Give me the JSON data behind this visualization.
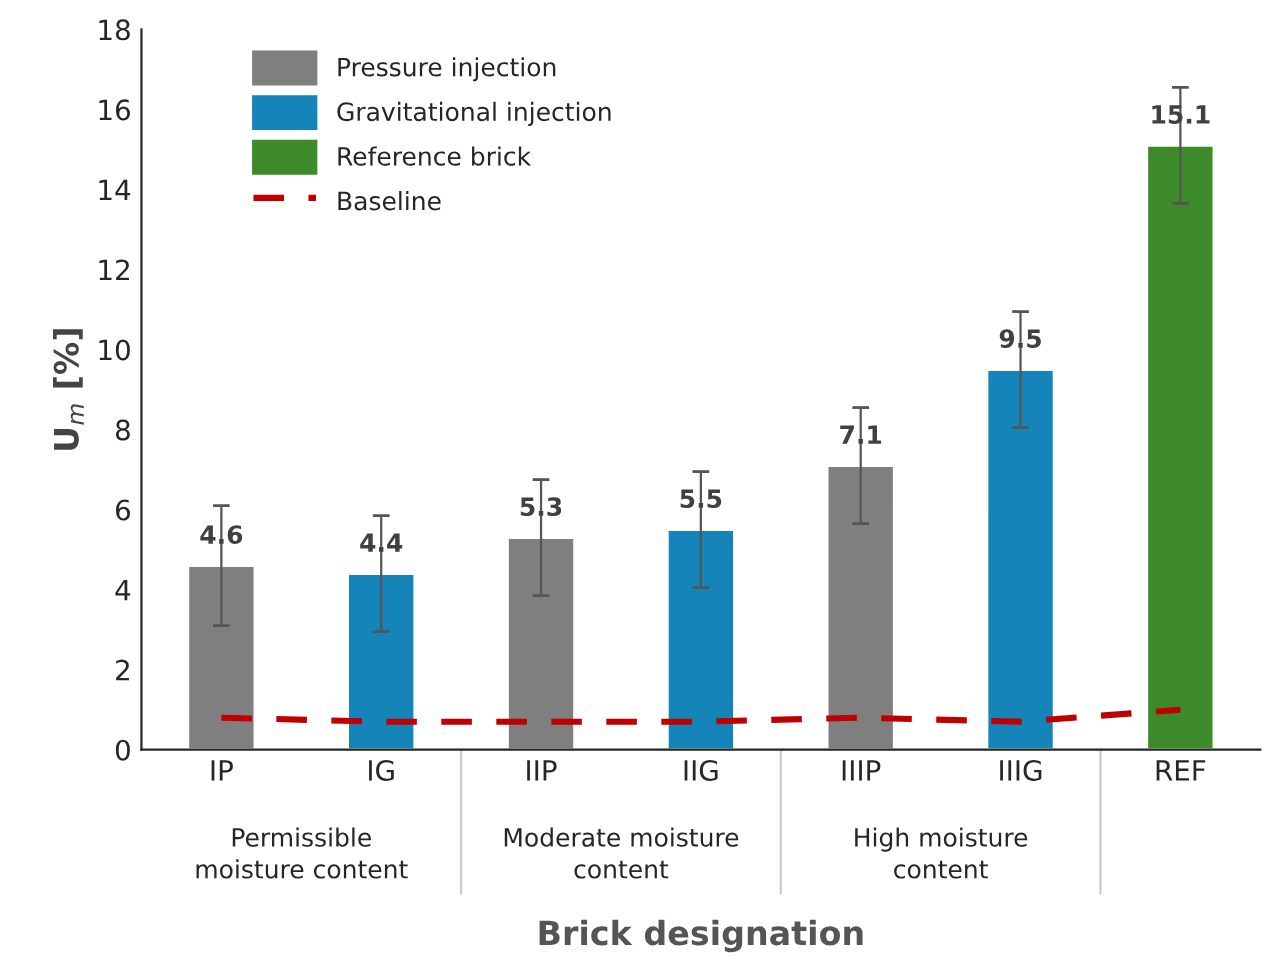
{
  "chart_data": {
    "type": "bar",
    "xlabel": "Brick designation",
    "ylabel": "U$_{m}$ [%]",
    "categories": [
      "IP",
      "IG",
      "IIP",
      "IIG",
      "IIIP",
      "IIIG",
      "REF"
    ],
    "series": [
      {
        "name": "Pressure injection",
        "color": "#7f7f7f",
        "values": [
          4.6,
          null,
          5.3,
          null,
          7.1,
          null,
          null
        ],
        "errors": [
          1.5,
          null,
          1.45,
          null,
          1.45,
          null,
          null
        ],
        "value_labels": [
          "4.6",
          null,
          "5.3",
          null,
          "7.1",
          null,
          null
        ]
      },
      {
        "name": "Gravitational injection",
        "color": "#1584b8",
        "values": [
          null,
          4.4,
          null,
          5.5,
          null,
          9.5,
          null
        ],
        "errors": [
          null,
          1.45,
          null,
          1.45,
          null,
          1.45,
          null
        ],
        "value_labels": [
          null,
          "4.4",
          null,
          "5.5",
          null,
          "9.5",
          null
        ]
      },
      {
        "name": "Reference brick",
        "color": "#3d8a2a",
        "values": [
          null,
          null,
          null,
          null,
          null,
          null,
          15.1
        ],
        "errors": [
          null,
          null,
          null,
          null,
          null,
          null,
          1.45
        ],
        "value_labels": [
          null,
          null,
          null,
          null,
          null,
          null,
          "15.1"
        ]
      },
      {
        "name": "Baseline",
        "type": "line",
        "color": "#c00000",
        "line_style": "dashed",
        "values": [
          0.8,
          0.7,
          0.7,
          0.7,
          0.8,
          0.7,
          1.0
        ]
      }
    ],
    "annotations": [
      "Permissible moisture content",
      "Moderate moisture content",
      "High moisture content"
    ],
    "ylim": [
      0,
      18
    ],
    "yticks": [
      0,
      2,
      4,
      6,
      8,
      10,
      12,
      14,
      16,
      18
    ],
    "grid": false,
    "legend": "top left"
  }
}
